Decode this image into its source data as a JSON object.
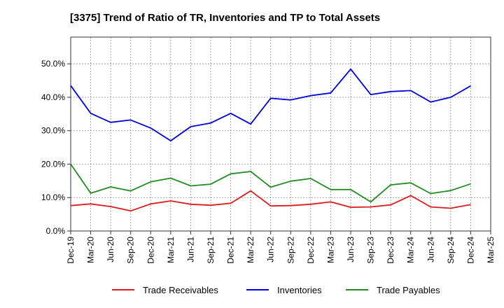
{
  "chart_data": {
    "type": "line",
    "title": "[3375]  Trend of Ratio of TR, Inventories and TP to Total Assets",
    "xlabel": "",
    "ylabel": "",
    "ylim": [
      0,
      0.58
    ],
    "yticks": [
      0,
      0.1,
      0.2,
      0.3,
      0.4,
      0.5
    ],
    "ytick_labels": [
      "0.0%",
      "10.0%",
      "20.0%",
      "30.0%",
      "40.0%",
      "50.0%"
    ],
    "x": [
      "Dec-19",
      "Mar-20",
      "Jun-20",
      "Sep-20",
      "Dec-20",
      "Mar-21",
      "Jun-21",
      "Sep-21",
      "Dec-21",
      "Mar-22",
      "Jun-22",
      "Sep-22",
      "Dec-22",
      "Mar-23",
      "Jun-23",
      "Sep-23",
      "Dec-23",
      "Mar-24",
      "Jun-24",
      "Sep-24",
      "Dec-24",
      "Mar-25"
    ],
    "grid": true,
    "legend_position": "bottom",
    "series": [
      {
        "name": "Trade Receivables",
        "color": "#e31a1c",
        "values": [
          0.076,
          0.081,
          0.073,
          0.06,
          0.081,
          0.09,
          0.08,
          0.077,
          0.083,
          0.12,
          0.075,
          0.076,
          0.08,
          0.087,
          0.071,
          0.072,
          0.078,
          0.106,
          0.072,
          0.068,
          0.079,
          null
        ]
      },
      {
        "name": "Inventories",
        "color": "#0000e0",
        "values": [
          0.435,
          0.352,
          0.325,
          0.332,
          0.308,
          0.27,
          0.312,
          0.323,
          0.352,
          0.32,
          0.397,
          0.392,
          0.405,
          0.413,
          0.484,
          0.408,
          0.417,
          0.42,
          0.386,
          0.4,
          0.434,
          null
        ]
      },
      {
        "name": "Trade Payables",
        "color": "#228b22",
        "values": [
          0.2,
          0.113,
          0.132,
          0.12,
          0.147,
          0.158,
          0.135,
          0.14,
          0.171,
          0.178,
          0.131,
          0.149,
          0.157,
          0.124,
          0.124,
          0.087,
          0.138,
          0.144,
          0.112,
          0.121,
          0.141,
          null
        ]
      }
    ]
  }
}
